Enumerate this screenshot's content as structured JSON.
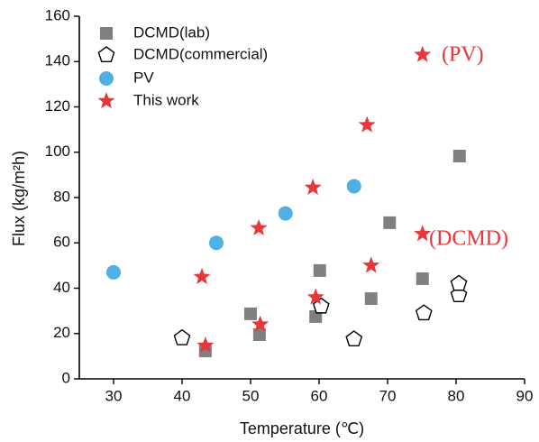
{
  "chart_data": {
    "type": "scatter",
    "x_label": "Temperature (℃)",
    "y_label": "Flux (kg/m²h)",
    "xlim": [
      25,
      90
    ],
    "ylim": [
      0,
      160
    ],
    "xticks": [
      30,
      40,
      50,
      60,
      70,
      80,
      90
    ],
    "yticks": [
      0,
      20,
      40,
      60,
      80,
      100,
      120,
      140,
      160
    ],
    "legend": "upper left",
    "series": [
      {
        "name": "DCMD(lab)",
        "marker": "square",
        "color": "#808080",
        "x": [
          43.4,
          50,
          51.3,
          59.5,
          60.1,
          67.6,
          70.3,
          75.1,
          80.5
        ],
        "values": [
          12.3,
          28.7,
          19.5,
          27.5,
          47.8,
          35.4,
          68.9,
          44.2,
          98.3
        ]
      },
      {
        "name": "DCMD(commercial)",
        "marker": "pentagon",
        "color": "#000000",
        "x": [
          40,
          60.3,
          65.1,
          75.3,
          80.4,
          80.4
        ],
        "values": [
          18,
          32,
          17.5,
          29,
          37,
          42
        ]
      },
      {
        "name": "PV",
        "marker": "circle",
        "color": "#4fb0e6",
        "x": [
          30,
          45,
          55.1,
          65.1
        ],
        "values": [
          47,
          60,
          73,
          85
        ]
      },
      {
        "name": "This work",
        "marker": "star",
        "color": "#e8373a",
        "x": [
          42.9,
          43.4,
          51.2,
          51.4,
          59.1,
          59.5,
          67,
          67.6,
          75.1,
          75.1
        ],
        "values": [
          45,
          14.7,
          66.5,
          24,
          84.4,
          36,
          112,
          50,
          64,
          143
        ]
      }
    ],
    "annotations": [
      "(PV)",
      "(DCMD)"
    ]
  }
}
